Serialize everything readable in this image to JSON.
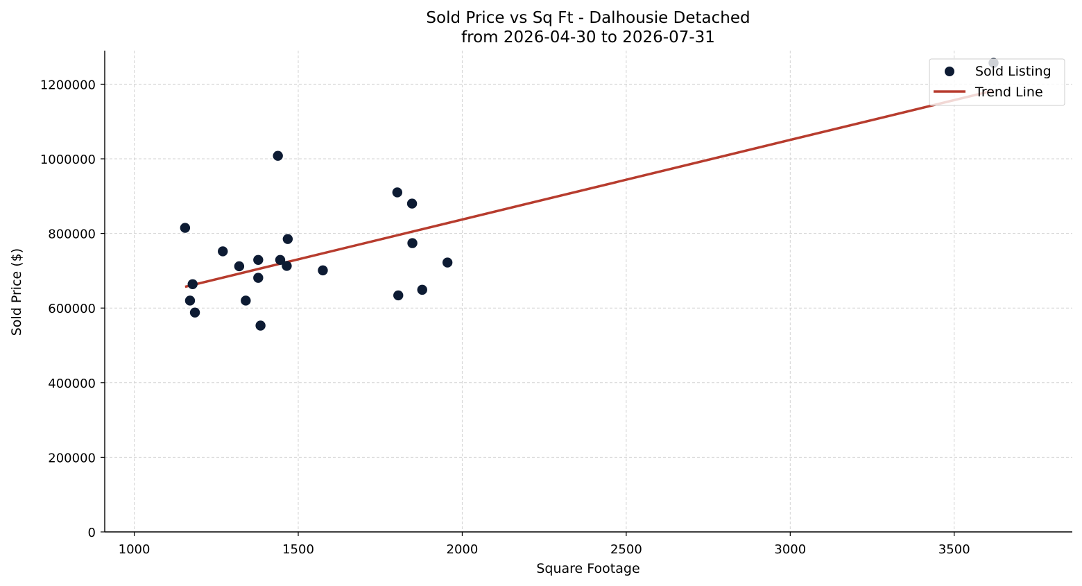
{
  "chart_data": {
    "type": "scatter",
    "title": "Sold Price vs Sq Ft - Dalhousie Detached",
    "subtitle": "from 2026-04-30 to 2026-07-31",
    "xlabel": "Square Footage",
    "ylabel": "Sold Price ($)",
    "xlim": [
      910,
      3860
    ],
    "ylim": [
      0,
      1290000
    ],
    "x_ticks": [
      1000,
      1500,
      2000,
      2500,
      3000,
      3500
    ],
    "y_ticks": [
      0,
      200000,
      400000,
      600000,
      800000,
      1000000,
      1200000
    ],
    "grid": true,
    "legend_position": "top-right",
    "series": [
      {
        "name": "Sold Listing",
        "type": "scatter",
        "color": "#0d1b33",
        "points": [
          {
            "x": 1155,
            "y": 815000
          },
          {
            "x": 1170,
            "y": 620000
          },
          {
            "x": 1178,
            "y": 664000
          },
          {
            "x": 1185,
            "y": 588000
          },
          {
            "x": 1270,
            "y": 752000
          },
          {
            "x": 1320,
            "y": 712000
          },
          {
            "x": 1340,
            "y": 620000
          },
          {
            "x": 1378,
            "y": 729000
          },
          {
            "x": 1378,
            "y": 681000
          },
          {
            "x": 1385,
            "y": 553000
          },
          {
            "x": 1438,
            "y": 1008000
          },
          {
            "x": 1445,
            "y": 729000
          },
          {
            "x": 1465,
            "y": 713000
          },
          {
            "x": 1468,
            "y": 785000
          },
          {
            "x": 1575,
            "y": 701000
          },
          {
            "x": 1802,
            "y": 910000
          },
          {
            "x": 1805,
            "y": 634000
          },
          {
            "x": 1847,
            "y": 880000
          },
          {
            "x": 1848,
            "y": 774000
          },
          {
            "x": 1878,
            "y": 649000
          },
          {
            "x": 1955,
            "y": 722000
          },
          {
            "x": 3620,
            "y": 1257000
          }
        ]
      },
      {
        "name": "Trend Line",
        "type": "line",
        "color": "#b73c2e",
        "points": [
          {
            "x": 1155,
            "y": 657000
          },
          {
            "x": 3620,
            "y": 1183000
          }
        ]
      }
    ]
  }
}
